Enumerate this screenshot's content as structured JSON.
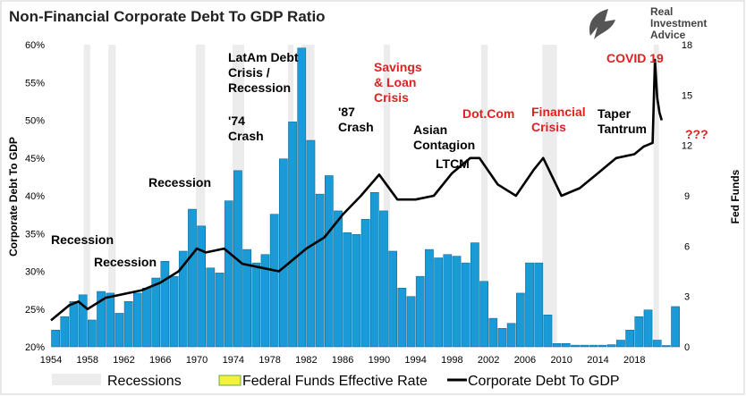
{
  "logo": {
    "text": [
      "Real",
      "Investment",
      "Advice"
    ]
  },
  "chart_data": {
    "type": "bar+line",
    "title": "Non-Financial Corporate Debt To GDP Ratio",
    "ylabel": "Corporate Debt To GDP",
    "y2label": "Fed Funds",
    "ylim": [
      20,
      60
    ],
    "y2lim": [
      0,
      18
    ],
    "xlim": [
      1954,
      2022
    ],
    "yticks": [
      "20%",
      "25%",
      "30%",
      "35%",
      "40%",
      "45%",
      "50%",
      "55%",
      "60%"
    ],
    "y2ticks": [
      "0",
      "3",
      "6",
      "9",
      "12",
      "15",
      "18"
    ],
    "xticks": [
      "1954",
      "1958",
      "1962",
      "1966",
      "1970",
      "1974",
      "1978",
      "1982",
      "1986",
      "1990",
      "1994",
      "1998",
      "2002",
      "2006",
      "2010",
      "2014",
      "2018"
    ],
    "legend": {
      "placement": "bottom",
      "entries": [
        "Recessions",
        "Federal Funds Effective Rate",
        "Corporate Debt To GDP"
      ]
    },
    "colors": {
      "bars": "#1a9ad6",
      "bar_edge": "#0b5f8a",
      "line": "#000000",
      "recession": "#ececec",
      "red_annotation": "#e02020",
      "legend_fed": "#f2f23a"
    },
    "recessions": [
      [
        1957.6,
        1958.3
      ],
      [
        1960.3,
        1961.1
      ],
      [
        1969.9,
        1970.9
      ],
      [
        1973.9,
        1975.2
      ],
      [
        1980.0,
        1980.5
      ],
      [
        1981.5,
        1982.9
      ],
      [
        1990.5,
        1991.2
      ],
      [
        2001.2,
        2001.9
      ],
      [
        2007.9,
        2009.5
      ],
      [
        2020.1,
        2020.4
      ]
    ],
    "fed_funds": {
      "x": [
        1954,
        1955,
        1956,
        1957,
        1958,
        1959,
        1960,
        1961,
        1962,
        1963,
        1964,
        1965,
        1966,
        1967,
        1968,
        1969,
        1970,
        1971,
        1972,
        1973,
        1974,
        1975,
        1976,
        1977,
        1978,
        1979,
        1980,
        1981,
        1982,
        1983,
        1984,
        1985,
        1986,
        1987,
        1988,
        1989,
        1990,
        1991,
        1992,
        1993,
        1994,
        1995,
        1996,
        1997,
        1998,
        1999,
        2000,
        2001,
        2002,
        2003,
        2004,
        2005,
        2006,
        2007,
        2008,
        2009,
        2010,
        2011,
        2012,
        2013,
        2014,
        2015,
        2016,
        2017,
        2018,
        2019,
        2020,
        2021,
        2022
      ],
      "values": [
        1.0,
        1.8,
        2.7,
        3.1,
        1.6,
        3.3,
        3.2,
        2.0,
        2.7,
        3.2,
        3.5,
        4.1,
        5.1,
        4.2,
        5.7,
        8.2,
        7.2,
        4.7,
        4.4,
        8.7,
        10.5,
        5.8,
        5.0,
        5.5,
        7.9,
        11.2,
        13.4,
        17.8,
        12.3,
        9.1,
        10.2,
        8.1,
        6.8,
        6.7,
        7.6,
        9.2,
        8.1,
        5.7,
        3.5,
        3.0,
        4.2,
        5.8,
        5.3,
        5.5,
        5.4,
        5.0,
        6.2,
        3.9,
        1.7,
        1.1,
        1.4,
        3.2,
        5.0,
        5.0,
        1.9,
        0.2,
        0.2,
        0.1,
        0.1,
        0.1,
        0.1,
        0.13,
        0.4,
        1.0,
        1.8,
        2.2,
        0.4,
        0.08,
        2.4
      ]
    },
    "debt_to_gdp": {
      "x": [
        1954,
        1956,
        1957,
        1958,
        1960,
        1962,
        1964,
        1966,
        1968,
        1970,
        1971,
        1973,
        1975,
        1977,
        1979,
        1980,
        1982,
        1984,
        1986,
        1988,
        1990,
        1992,
        1994,
        1996,
        1998,
        2000,
        2001,
        2003,
        2005,
        2007,
        2008,
        2010,
        2012,
        2014,
        2016,
        2018,
        2019,
        2020,
        2020.25,
        2020.5,
        2020.75,
        2021
      ],
      "values": [
        23.5,
        25.5,
        26,
        25,
        26.5,
        27,
        27.5,
        28.5,
        30,
        33,
        32.5,
        33,
        31,
        30.5,
        30,
        31,
        33,
        34.5,
        37.5,
        40,
        42.8,
        39.5,
        39.5,
        40,
        43,
        45,
        45,
        41.5,
        40,
        43.5,
        45,
        40,
        41,
        43,
        45,
        45.5,
        46.5,
        47,
        58,
        53,
        51,
        50
      ]
    },
    "annotations": [
      {
        "text": [
          "Recession"
        ],
        "color": "black"
      },
      {
        "text": [
          "Recession"
        ],
        "color": "black"
      },
      {
        "text": [
          "Recession"
        ],
        "color": "black"
      },
      {
        "text": [
          "'74",
          "Crash"
        ],
        "color": "black"
      },
      {
        "text": [
          "LatAm Debt",
          "Crisis /",
          "Recession"
        ],
        "color": "black"
      },
      {
        "text": [
          "'87",
          "Crash"
        ],
        "color": "black"
      },
      {
        "text": [
          "Savings",
          "& Loan",
          "Crisis"
        ],
        "color": "red"
      },
      {
        "text": [
          "Asian",
          "Contagion"
        ],
        "color": "black"
      },
      {
        "text": [
          "LTCM"
        ],
        "color": "black"
      },
      {
        "text": [
          "Dot.Com"
        ],
        "color": "red"
      },
      {
        "text": [
          "Financial",
          "Crisis"
        ],
        "color": "red"
      },
      {
        "text": [
          "Taper",
          "Tantrum"
        ],
        "color": "black"
      },
      {
        "text": [
          "COVID 19"
        ],
        "color": "red"
      },
      {
        "text": [
          "???"
        ],
        "color": "red"
      }
    ]
  }
}
